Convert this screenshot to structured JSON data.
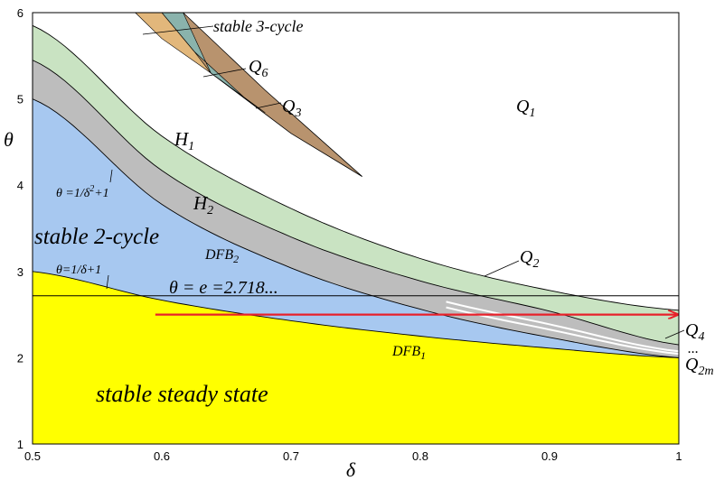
{
  "chart_data": {
    "type": "area",
    "xlabel": "δ",
    "ylabel": "θ",
    "xlim": [
      0.5,
      1.0
    ],
    "ylim": [
      1,
      6
    ],
    "x_ticks": [
      "0.5",
      "0.6",
      "0.7",
      "0.8",
      "0.9",
      "1"
    ],
    "y_ticks": [
      "1",
      "2",
      "3",
      "4",
      "5",
      "6"
    ],
    "region_labels": {
      "steady": "stable steady state",
      "two_cycle": "stable 2-cycle",
      "three_cycle": "stable 3-cycle",
      "q1": "Q1",
      "q2": "Q2",
      "q3": "Q3",
      "q4": "Q4",
      "q6": "Q6",
      "q2m": "Q2m",
      "dots": "..."
    },
    "curve_labels": {
      "h1": "H1",
      "h2": "H2",
      "dfb1": "DFB1",
      "dfb2": "DFB2",
      "theta_inv_delta": "θ=1/δ+1",
      "theta_inv_delta_sq": "θ=1/δ²+1",
      "theta_e": "θ = e =2.718..."
    },
    "reference_line": {
      "theta": 2.718
    },
    "arrow": {
      "x_start": 0.595,
      "x_end": 1.0,
      "theta": 2.5
    },
    "series": [
      {
        "name": "θ=1/δ+1",
        "x": [
          0.5,
          0.6,
          0.7,
          0.8,
          0.9,
          1.0
        ],
        "y": [
          3.0,
          2.667,
          2.429,
          2.25,
          2.111,
          2.0
        ]
      },
      {
        "name": "DFB1",
        "x": [
          0.5,
          0.6,
          0.7,
          0.8,
          0.9,
          1.0
        ],
        "y": [
          3.0,
          2.667,
          2.429,
          2.25,
          2.111,
          2.0
        ]
      },
      {
        "name": "θ=1/δ²+1",
        "x": [
          0.5,
          0.6,
          0.7,
          0.8,
          0.9,
          1.0
        ],
        "y": [
          5.0,
          3.778,
          3.041,
          2.5625,
          2.235,
          2.0
        ]
      },
      {
        "name": "H2",
        "x": [
          0.5,
          0.6,
          0.7,
          0.8,
          0.9,
          1.0
        ],
        "y": [
          5.45,
          4.17,
          3.4,
          2.89,
          2.54,
          2.15
        ]
      },
      {
        "name": "H1",
        "x": [
          0.5,
          0.6,
          0.7,
          0.8,
          0.9,
          1.0
        ],
        "y": [
          5.85,
          4.57,
          3.73,
          3.15,
          2.78,
          2.55
        ]
      }
    ],
    "regions": [
      {
        "name": "stable 3-cycle",
        "color": "#e2b77b"
      },
      {
        "name": "Q6",
        "color": "#8ab3ac"
      },
      {
        "name": "Q3",
        "color": "#b8936e"
      },
      {
        "name": "Q2",
        "color": "#c9e3c2"
      },
      {
        "name": "gray band",
        "color": "#bdbdbd"
      },
      {
        "name": "stable 2-cycle",
        "color": "#a7c8f0"
      },
      {
        "name": "stable steady state",
        "color": "#ffff00"
      }
    ],
    "colors": {
      "arrow": "#e8202a",
      "plot_bg": "#ffffff",
      "axis": "#000000"
    }
  }
}
